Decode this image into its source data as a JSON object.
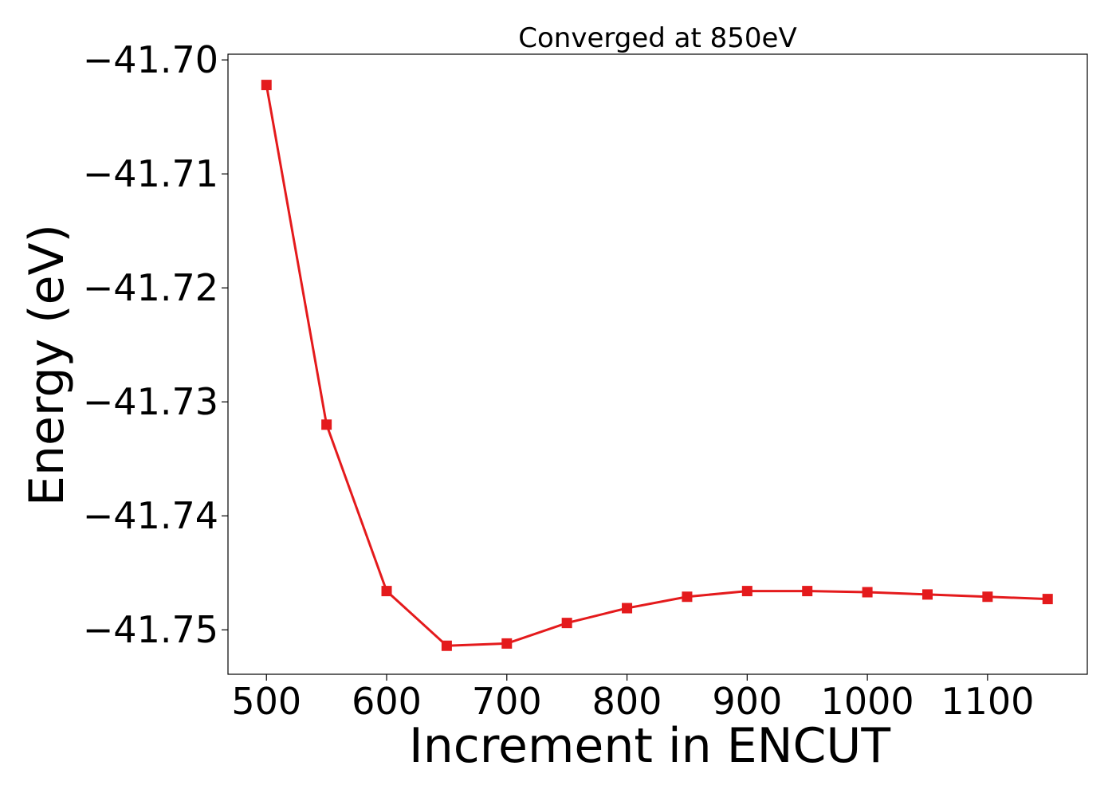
{
  "chart_data": {
    "type": "line",
    "title": "Converged at 850eV",
    "xlabel": "Increment in ENCUT",
    "ylabel": "Energy (eV)",
    "x": [
      500,
      550,
      600,
      650,
      700,
      750,
      800,
      850,
      900,
      950,
      1000,
      1050,
      1100,
      1150
    ],
    "series": [
      {
        "values": [
          -41.7022,
          -41.732,
          -41.7466,
          -41.7514,
          -41.7512,
          -41.7494,
          -41.7481,
          -41.7471,
          -41.7466,
          -41.7466,
          -41.7467,
          -41.7469,
          -41.7471,
          -41.7473
        ],
        "color": "#e41a1c",
        "marker": "square"
      }
    ],
    "xlim": [
      468,
      1183
    ],
    "ylim": [
      -41.7539,
      -41.6995
    ],
    "xticks": [
      500,
      600,
      700,
      800,
      900,
      1000,
      1100
    ],
    "xtick_labels": [
      "500",
      "600",
      "700",
      "800",
      "900",
      "1000",
      "1100"
    ],
    "yticks": [
      -41.7,
      -41.71,
      -41.72,
      -41.73,
      -41.74,
      -41.75
    ],
    "ytick_labels": [
      "−41.70",
      "−41.71",
      "−41.72",
      "−41.73",
      "−41.74",
      "−41.75"
    ],
    "grid": false,
    "legend": "none"
  }
}
